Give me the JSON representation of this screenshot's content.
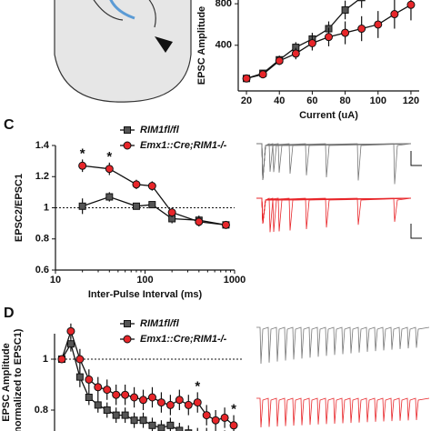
{
  "chart_data": [
    {
      "type": "line",
      "panel": null,
      "xlabel": "Current (uA)",
      "ylabel": "EPSC Amplitude",
      "x": [
        20,
        30,
        40,
        50,
        60,
        70,
        80,
        90,
        100,
        110,
        120
      ],
      "xlim": [
        15,
        125
      ],
      "xticks": [
        20,
        40,
        60,
        80,
        100,
        120
      ],
      "ylim": [
        -40,
        880
      ],
      "yticks": [
        400,
        800
      ],
      "log_x": false,
      "series": [
        {
          "name": "RIM1fl/fl",
          "color": "#222222",
          "marker": "square",
          "values": [
            80,
            130,
            260,
            380,
            460,
            560,
            740,
            860,
            null,
            null,
            null
          ],
          "errors": [
            15,
            25,
            40,
            50,
            60,
            70,
            90,
            100,
            null,
            null,
            null
          ]
        },
        {
          "name": "Emx1::Cre;RIM1-/-",
          "color": "#e8262a",
          "marker": "circle",
          "values": [
            80,
            120,
            250,
            320,
            420,
            480,
            520,
            560,
            600,
            700,
            790
          ],
          "errors": [
            15,
            25,
            40,
            55,
            70,
            90,
            110,
            120,
            130,
            140,
            150
          ]
        }
      ],
      "annotations": []
    },
    {
      "type": "line",
      "panel": "C",
      "xlabel": "Inter-Pulse Interval (ms)",
      "ylabel": "EPSC2/EPSC1",
      "x": [
        20,
        40,
        80,
        120,
        200,
        400,
        800
      ],
      "xlim": [
        10,
        1000
      ],
      "xticks": [
        10,
        100,
        1000
      ],
      "ylim": [
        0.6,
        1.4
      ],
      "yticks": [
        0.6,
        0.8,
        1.0,
        1.2,
        1.4
      ],
      "log_x": true,
      "ref_line": 1.0,
      "series": [
        {
          "name": "RIM1fl/fl",
          "color": "#222222",
          "marker": "square",
          "values": [
            1.01,
            1.07,
            1.01,
            1.02,
            0.93,
            0.92,
            0.89
          ],
          "errors": [
            0.05,
            0.03,
            0.02,
            0.02,
            0.03,
            0.03,
            0.02
          ]
        },
        {
          "name": "Emx1::Cre;RIM1-/-",
          "color": "#e8262a",
          "marker": "circle",
          "values": [
            1.27,
            1.25,
            1.15,
            1.14,
            0.97,
            0.91,
            0.89
          ],
          "errors": [
            0.04,
            0.04,
            0.03,
            0.03,
            0.03,
            0.03,
            0.02
          ]
        }
      ],
      "annotations": [
        {
          "text": "*",
          "x": 20
        },
        {
          "text": "*",
          "x": 40
        }
      ]
    },
    {
      "type": "line",
      "panel": "D",
      "xlabel": null,
      "ylabel": [
        "EPSC Amplitude",
        "(normalized to EPSC1)"
      ],
      "x": [
        1,
        2,
        3,
        4,
        5,
        6,
        7,
        8,
        9,
        10,
        11,
        12,
        13,
        14,
        15,
        16,
        17,
        18,
        19,
        20
      ],
      "xlim": [
        0.2,
        21
      ],
      "xticks": [],
      "ylim": [
        0.6,
        1.1
      ],
      "yticks": [
        0.8,
        1.0
      ],
      "log_x": false,
      "ref_line": 1.0,
      "series": [
        {
          "name": "RIM1fl/fl",
          "color": "#222222",
          "marker": "square",
          "values": [
            1.0,
            1.06,
            0.93,
            0.85,
            0.82,
            0.8,
            0.78,
            0.78,
            0.76,
            0.76,
            0.74,
            0.73,
            0.74,
            0.72,
            0.71,
            0.7,
            0.7,
            0.69,
            0.69,
            0.68
          ],
          "errors": [
            0.01,
            0.03,
            0.04,
            0.03,
            0.03,
            0.03,
            0.03,
            0.03,
            0.03,
            0.03,
            0.03,
            0.03,
            0.03,
            0.03,
            0.03,
            0.03,
            0.03,
            0.03,
            0.03,
            0.03
          ]
        },
        {
          "name": "Emx1::Cre;RIM1-/-",
          "color": "#e8262a",
          "marker": "circle",
          "values": [
            1.0,
            1.11,
            1.0,
            0.92,
            0.89,
            0.88,
            0.86,
            0.86,
            0.85,
            0.84,
            0.85,
            0.83,
            0.82,
            0.84,
            0.82,
            0.83,
            0.78,
            0.76,
            0.77,
            0.74
          ],
          "errors": [
            0.01,
            0.03,
            0.04,
            0.04,
            0.04,
            0.04,
            0.04,
            0.04,
            0.04,
            0.04,
            0.04,
            0.04,
            0.04,
            0.04,
            0.04,
            0.04,
            0.04,
            0.04,
            0.04,
            0.04
          ]
        }
      ],
      "annotations": [
        {
          "text": "*",
          "x": 16
        },
        {
          "text": "*",
          "x": 20
        }
      ]
    }
  ]
}
